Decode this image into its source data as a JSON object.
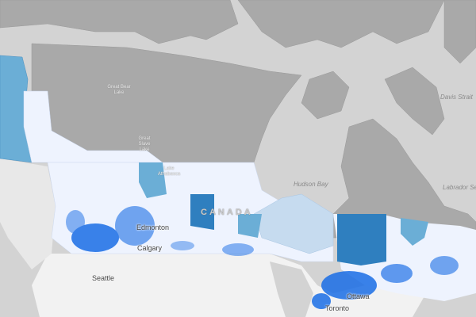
{
  "map": {
    "colors": {
      "water": "#d3d3d3",
      "land_no_data": "#a9a9a9",
      "land_other": "#f2f2f2",
      "class_1": "#eef3fe",
      "class_2": "#c6dbef",
      "class_3": "#6baed6",
      "class_4": "#2f7fbf",
      "class_5": "#1a6ee6"
    },
    "labels": {
      "davis_strait": "Davis Strait",
      "hudson_bay": "Hudson Bay",
      "labrador_sea": "Labrador Sea",
      "great_bear_lake": "Great Bear Lake",
      "great_slave_lake": "Great Slave Lake",
      "lake_athabasca": "Lake Athabasca",
      "country": "CANADA",
      "edmonton": "Edmonton",
      "calgary": "Calgary",
      "seattle": "Seattle",
      "ottawa": "Ottawa",
      "toronto": "Toronto"
    }
  }
}
